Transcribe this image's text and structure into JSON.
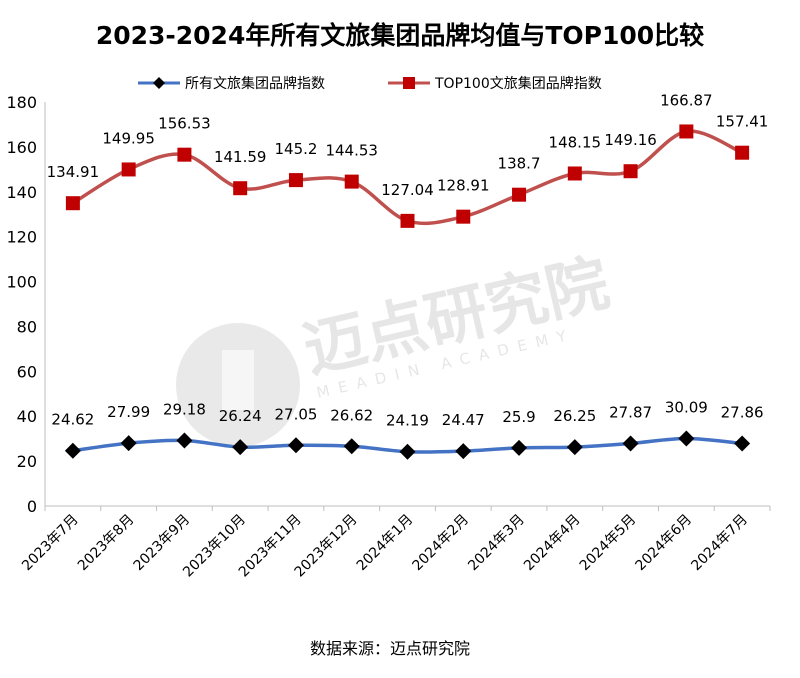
{
  "chart_data": {
    "type": "line",
    "title": "2023-2024年所有文旅集团品牌均值与TOP100比较",
    "categories": [
      "2023年7月",
      "2023年8月",
      "2023年9月",
      "2023年10月",
      "2023年11月",
      "2023年12月",
      "2024年1月",
      "2024年2月",
      "2024年3月",
      "2024年4月",
      "2024年5月",
      "2024年6月",
      "2024年7月"
    ],
    "series": [
      {
        "name": "所有文旅集团品牌指数",
        "color": "#4472C4",
        "marker_color": "#000000",
        "marker": "diamond",
        "values": [
          24.62,
          27.99,
          29.18,
          26.24,
          27.05,
          26.62,
          24.19,
          24.47,
          25.9,
          26.25,
          27.87,
          30.09,
          27.86
        ],
        "labels": [
          "24.62",
          "27.99",
          "29.18",
          "26.24",
          "27.05",
          "26.62",
          "24.19",
          "24.47",
          "25.9",
          "26.25",
          "27.87",
          "30.09",
          "27.86"
        ]
      },
      {
        "name": "TOP100文旅集团品牌指数",
        "color": "#C0504D",
        "marker_color": "#C00000",
        "marker": "square",
        "values": [
          134.91,
          149.95,
          156.53,
          141.59,
          145.2,
          144.53,
          127.04,
          128.91,
          138.7,
          148.15,
          149.16,
          166.87,
          157.41
        ],
        "labels": [
          "134.91",
          "149.95",
          "156.53",
          "141.59",
          "145.2",
          "144.53",
          "127.04",
          "128.91",
          "138.7",
          "148.15",
          "149.16",
          "166.87",
          "157.41"
        ]
      }
    ],
    "ylim": [
      0,
      180
    ],
    "yticks": [
      "0",
      "20",
      "40",
      "60",
      "80",
      "100",
      "120",
      "140",
      "160",
      "180"
    ],
    "xlabel": "",
    "ylabel": "",
    "legend": "top",
    "grid": false
  },
  "watermark": {
    "text": "迈点研究院",
    "subtext": "MEADIN ACADEMY"
  },
  "source": "数据来源：迈点研究院"
}
